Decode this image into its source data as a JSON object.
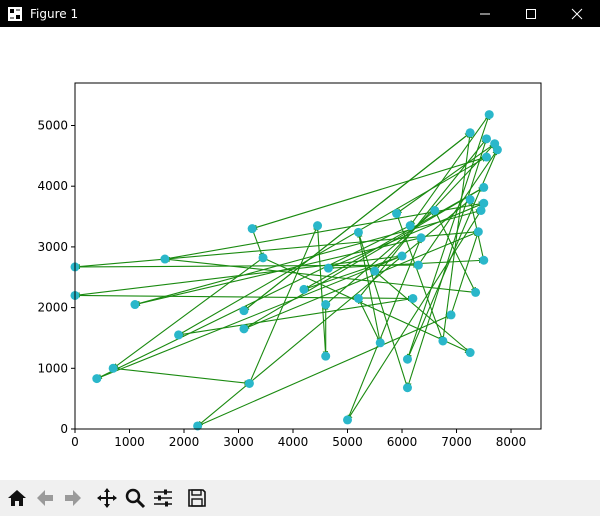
{
  "window": {
    "title": "Figure 1",
    "icons": {
      "app": "matplotlib-figure-icon",
      "minimize": "minimize-icon",
      "maximize": "maximize-icon",
      "close": "close-icon"
    }
  },
  "toolbar": {
    "buttons": [
      {
        "name": "home-button",
        "icon": "home-icon"
      },
      {
        "name": "back-button",
        "icon": "arrow-left-icon"
      },
      {
        "name": "forward-button",
        "icon": "arrow-right-icon"
      },
      {
        "name": "pan-button",
        "icon": "move-icon"
      },
      {
        "name": "zoom-button",
        "icon": "magnifier-icon"
      },
      {
        "name": "configure-subplots-button",
        "icon": "sliders-icon"
      },
      {
        "name": "save-button",
        "icon": "floppy-disk-icon"
      }
    ]
  },
  "chart_data": {
    "type": "scatter",
    "title": "",
    "xlabel": "",
    "ylabel": "",
    "xlim": [
      0,
      8550
    ],
    "ylim": [
      0,
      5700
    ],
    "xticks": [
      0,
      1000,
      2000,
      3000,
      4000,
      5000,
      6000,
      7000,
      8000
    ],
    "yticks": [
      0,
      1000,
      2000,
      3000,
      4000,
      5000
    ],
    "grid": false,
    "marker_color": "#2ab7ca",
    "arrow_color": "#1a8a10",
    "points": [
      [
        7600,
        5180
      ],
      [
        7250,
        4880
      ],
      [
        7550,
        4780
      ],
      [
        7700,
        4700
      ],
      [
        7750,
        4600
      ],
      [
        7550,
        4480
      ],
      [
        7500,
        3980
      ],
      [
        7250,
        3780
      ],
      [
        7500,
        3720
      ],
      [
        7450,
        3600
      ],
      [
        7400,
        3250
      ],
      [
        7500,
        2780
      ],
      [
        7350,
        2250
      ],
      [
        7250,
        1260
      ],
      [
        6900,
        1880
      ],
      [
        6750,
        1450
      ],
      [
        6600,
        3600
      ],
      [
        6350,
        3150
      ],
      [
        6150,
        3350
      ],
      [
        6300,
        2700
      ],
      [
        6000,
        2850
      ],
      [
        6200,
        2150
      ],
      [
        6100,
        1150
      ],
      [
        6100,
        680
      ],
      [
        5900,
        3550
      ],
      [
        5500,
        2600
      ],
      [
        5600,
        1420
      ],
      [
        5200,
        3240
      ],
      [
        5000,
        150
      ],
      [
        5200,
        2150
      ],
      [
        4650,
        2650
      ],
      [
        4450,
        3350
      ],
      [
        4600,
        2050
      ],
      [
        4600,
        1200
      ],
      [
        4200,
        2300
      ],
      [
        3450,
        2820
      ],
      [
        3250,
        3300
      ],
      [
        3100,
        1950
      ],
      [
        3100,
        1650
      ],
      [
        3200,
        750
      ],
      [
        2250,
        50
      ],
      [
        1900,
        1550
      ],
      [
        1650,
        2800
      ],
      [
        1100,
        2050
      ],
      [
        700,
        1000
      ],
      [
        400,
        830
      ],
      [
        0,
        2670
      ],
      [
        0,
        2200
      ]
    ],
    "arrows": [
      [
        [
          0,
          2670
        ],
        [
          6300,
          2700
        ]
      ],
      [
        [
          0,
          2200
        ],
        [
          6200,
          2150
        ]
      ],
      [
        [
          400,
          830
        ],
        [
          6000,
          2850
        ]
      ],
      [
        [
          700,
          1000
        ],
        [
          3200,
          750
        ]
      ],
      [
        [
          1100,
          2050
        ],
        [
          7450,
          3600
        ]
      ],
      [
        [
          1650,
          2800
        ],
        [
          7500,
          3720
        ]
      ],
      [
        [
          1900,
          1550
        ],
        [
          7550,
          4480
        ]
      ],
      [
        [
          2250,
          50
        ],
        [
          6900,
          1880
        ]
      ],
      [
        [
          3100,
          1950
        ],
        [
          7250,
          4880
        ]
      ],
      [
        [
          3100,
          1650
        ],
        [
          7400,
          3250
        ]
      ],
      [
        [
          3200,
          750
        ],
        [
          4450,
          3350
        ]
      ],
      [
        [
          3250,
          3300
        ],
        [
          3450,
          2820
        ]
      ],
      [
        [
          3450,
          2820
        ],
        [
          7250,
          1260
        ]
      ],
      [
        [
          4200,
          2300
        ],
        [
          7500,
          3980
        ]
      ],
      [
        [
          4450,
          3350
        ],
        [
          4600,
          1200
        ]
      ],
      [
        [
          4600,
          2050
        ],
        [
          6600,
          3600
        ]
      ],
      [
        [
          4650,
          2650
        ],
        [
          7500,
          2780
        ]
      ],
      [
        [
          5000,
          150
        ],
        [
          6350,
          3150
        ]
      ],
      [
        [
          5200,
          3240
        ],
        [
          5600,
          1420
        ]
      ],
      [
        [
          5200,
          2150
        ],
        [
          7550,
          4780
        ]
      ],
      [
        [
          5500,
          2600
        ],
        [
          7700,
          4700
        ]
      ],
      [
        [
          5900,
          3550
        ],
        [
          6750,
          1450
        ]
      ],
      [
        [
          6000,
          2850
        ],
        [
          0,
          2200
        ]
      ],
      [
        [
          6100,
          1150
        ],
        [
          7600,
          5180
        ]
      ],
      [
        [
          6100,
          680
        ],
        [
          5200,
          3240
        ]
      ],
      [
        [
          6150,
          3350
        ],
        [
          400,
          830
        ]
      ],
      [
        [
          6200,
          2150
        ],
        [
          1900,
          1550
        ]
      ],
      [
        [
          6300,
          2700
        ],
        [
          7750,
          4600
        ]
      ],
      [
        [
          6350,
          3150
        ],
        [
          1100,
          2050
        ]
      ],
      [
        [
          6600,
          3600
        ],
        [
          7350,
          2250
        ]
      ],
      [
        [
          6750,
          1450
        ],
        [
          7250,
          4880
        ]
      ],
      [
        [
          6900,
          1880
        ],
        [
          7400,
          3250
        ]
      ],
      [
        [
          7250,
          3780
        ],
        [
          2250,
          50
        ]
      ],
      [
        [
          7350,
          2250
        ],
        [
          1650,
          2800
        ]
      ],
      [
        [
          7400,
          3250
        ],
        [
          0,
          2670
        ]
      ],
      [
        [
          7450,
          3600
        ],
        [
          5000,
          150
        ]
      ],
      [
        [
          7500,
          3980
        ],
        [
          3100,
          1650
        ]
      ],
      [
        [
          7500,
          3720
        ],
        [
          4650,
          2650
        ]
      ],
      [
        [
          7500,
          2780
        ],
        [
          7250,
          3780
        ]
      ],
      [
        [
          7550,
          4480
        ],
        [
          3250,
          3300
        ]
      ],
      [
        [
          7550,
          4780
        ],
        [
          6100,
          680
        ]
      ],
      [
        [
          7600,
          5180
        ],
        [
          6150,
          3350
        ]
      ],
      [
        [
          7700,
          4700
        ],
        [
          5900,
          3550
        ]
      ],
      [
        [
          7750,
          4600
        ],
        [
          6100,
          1150
        ]
      ],
      [
        [
          7250,
          4880
        ],
        [
          3100,
          1950
        ]
      ],
      [
        [
          7250,
          1260
        ],
        [
          5500,
          2600
        ]
      ],
      [
        [
          6000,
          2850
        ],
        [
          4200,
          2300
        ]
      ],
      [
        [
          5600,
          1420
        ],
        [
          5200,
          2150
        ]
      ],
      [
        [
          4600,
          1200
        ],
        [
          4600,
          2050
        ]
      ],
      [
        [
          3450,
          2820
        ],
        [
          700,
          1000
        ]
      ]
    ]
  }
}
